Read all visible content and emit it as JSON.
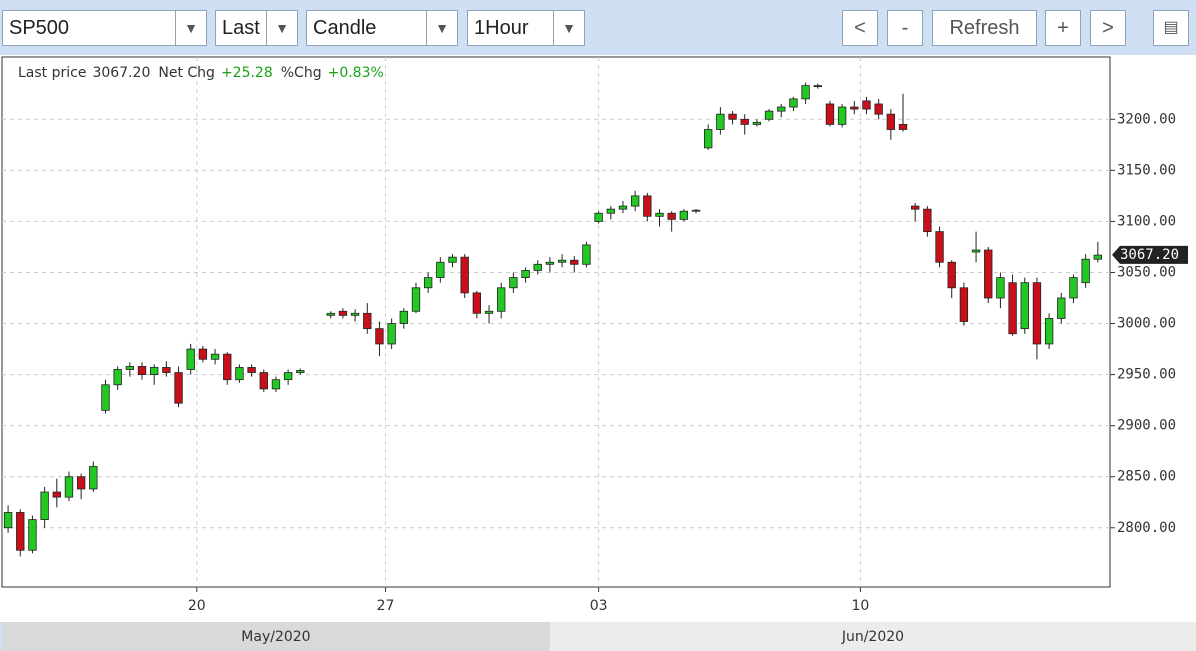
{
  "toolbar": {
    "symbol": "SP500",
    "field": "Last",
    "style": "Candle",
    "interval": "1Hour",
    "buttons": [
      "<",
      "-",
      "Refresh",
      "+",
      ">"
    ]
  },
  "chart_data": {
    "type": "candlestick",
    "info": [
      {
        "label": "Last price",
        "value": "3067.20"
      },
      {
        "label": "Net Chg",
        "value": "+25.28"
      },
      {
        "label": "%Chg",
        "value": "+0.83%"
      }
    ],
    "up_color": "#22c922",
    "down_color": "#c8101a",
    "grid": true,
    "ylim": [
      2742,
      3261
    ],
    "yticks": [
      {
        "value": 2800,
        "label": "2800.00"
      },
      {
        "value": 2850,
        "label": "2850.00"
      },
      {
        "value": 2900,
        "label": "2900.00"
      },
      {
        "value": 2950,
        "label": "2950.00"
      },
      {
        "value": 3000,
        "label": "3000.00"
      },
      {
        "value": 3050,
        "label": "3050.00"
      },
      {
        "value": 3100,
        "label": "3100.00"
      },
      {
        "value": 3150,
        "label": "3150.00"
      },
      {
        "value": 3200,
        "label": "3200.00"
      }
    ],
    "xlim": [
      -1,
      181
    ],
    "xticks": [
      {
        "value": 31,
        "label": "20"
      },
      {
        "value": 62,
        "label": "27"
      },
      {
        "value": 97,
        "label": "03"
      },
      {
        "value": 140,
        "label": "10"
      }
    ],
    "months": [
      {
        "label": "May/2020",
        "from": -1,
        "to": 89
      },
      {
        "label": "Jun/2020",
        "from": 89,
        "to": 181
      }
    ],
    "last_price": {
      "value": 3067.2,
      "label": "3067.20"
    },
    "x": [
      0,
      2,
      4,
      6,
      8,
      10,
      12,
      14,
      16,
      18,
      20,
      22,
      24,
      26,
      28,
      30,
      32,
      34,
      36,
      38,
      40,
      42,
      44,
      46,
      48,
      53,
      55,
      57,
      59,
      61,
      63,
      65,
      67,
      69,
      71,
      73,
      75,
      77,
      79,
      81,
      83,
      85,
      87,
      89,
      91,
      93,
      95,
      97,
      99,
      101,
      103,
      105,
      107,
      109,
      111,
      113,
      115,
      117,
      119,
      121,
      123,
      125,
      127,
      129,
      131,
      133,
      135,
      137,
      139,
      141,
      143,
      145,
      147,
      149,
      151,
      153,
      155,
      157,
      159,
      161,
      163,
      165,
      167,
      169,
      171,
      173,
      175,
      177,
      179
    ],
    "open": [
      2800,
      2815,
      2778,
      2808,
      2835,
      2830,
      2850,
      2838,
      2915,
      2940,
      2955,
      2958,
      2950,
      2957,
      2952,
      2955,
      2975,
      2965,
      2970,
      2945,
      2957,
      2952,
      2936,
      2945,
      2952,
      3008,
      3012,
      3008,
      3010,
      2995,
      2980,
      3000,
      3012,
      3035,
      3045,
      3060,
      3065,
      3030,
      3010,
      3012,
      3035,
      3045,
      3052,
      3058,
      3060,
      3062,
      3058,
      3100,
      3108,
      3112,
      3115,
      3125,
      3105,
      3108,
      3102,
      3110,
      3172,
      3190,
      3205,
      3200,
      3195,
      3200,
      3208,
      3212,
      3220,
      3233,
      3215,
      3195,
      3212,
      3218,
      3215,
      3205,
      3195,
      3115,
      3112,
      3090,
      3060,
      3035,
      3070,
      3072,
      3025,
      3040,
      2995,
      3040,
      2980,
      3005,
      3025,
      3040,
      3063
    ],
    "high": [
      2822,
      2818,
      2812,
      2840,
      2848,
      2855,
      2853,
      2865,
      2945,
      2958,
      2962,
      2962,
      2960,
      2963,
      2958,
      2980,
      2978,
      2975,
      2972,
      2960,
      2960,
      2955,
      2948,
      2955,
      2956,
      3012,
      3015,
      3014,
      3020,
      3002,
      3005,
      3015,
      3040,
      3050,
      3065,
      3068,
      3068,
      3032,
      3018,
      3040,
      3050,
      3055,
      3062,
      3065,
      3068,
      3066,
      3080,
      3110,
      3115,
      3120,
      3130,
      3128,
      3112,
      3110,
      3112,
      3112,
      3195,
      3212,
      3208,
      3205,
      3200,
      3210,
      3215,
      3222,
      3236,
      3235,
      3218,
      3215,
      3218,
      3222,
      3220,
      3210,
      3225,
      3118,
      3115,
      3095,
      3062,
      3040,
      3090,
      3075,
      3050,
      3048,
      3045,
      3045,
      3010,
      3030,
      3048,
      3068,
      3080
    ],
    "low": [
      2795,
      2772,
      2775,
      2800,
      2820,
      2826,
      2828,
      2835,
      2912,
      2935,
      2948,
      2945,
      2940,
      2948,
      2918,
      2950,
      2962,
      2960,
      2940,
      2942,
      2948,
      2933,
      2933,
      2940,
      2950,
      3005,
      3005,
      3002,
      2990,
      2968,
      2975,
      2995,
      3010,
      3030,
      3040,
      3055,
      3025,
      3005,
      3000,
      3005,
      3030,
      3040,
      3048,
      3050,
      3055,
      3050,
      3055,
      3098,
      3102,
      3108,
      3110,
      3100,
      3095,
      3090,
      3100,
      3108,
      3170,
      3185,
      3195,
      3185,
      3193,
      3198,
      3202,
      3208,
      3215,
      3230,
      3193,
      3192,
      3205,
      3205,
      3200,
      3180,
      3188,
      3100,
      3085,
      3055,
      3025,
      2998,
      3060,
      3020,
      3015,
      2988,
      2990,
      2965,
      2975,
      3000,
      3020,
      3035,
      3060
    ],
    "close": [
      2815,
      2778,
      2808,
      2835,
      2830,
      2850,
      2838,
      2860,
      2940,
      2955,
      2958,
      2950,
      2957,
      2952,
      2922,
      2975,
      2965,
      2970,
      2945,
      2957,
      2952,
      2936,
      2945,
      2952,
      2954,
      3010,
      3008,
      3010,
      2995,
      2980,
      3000,
      3012,
      3035,
      3045,
      3060,
      3065,
      3030,
      3010,
      3012,
      3035,
      3045,
      3052,
      3058,
      3060,
      3062,
      3058,
      3077,
      3108,
      3112,
      3115,
      3125,
      3105,
      3108,
      3102,
      3110,
      3111,
      3190,
      3205,
      3200,
      3195,
      3197,
      3208,
      3212,
      3220,
      3233,
      3232,
      3195,
      3212,
      3210,
      3210,
      3205,
      3190,
      3190,
      3112,
      3090,
      3060,
      3035,
      3002,
      3072,
      3025,
      3045,
      2990,
      3040,
      2980,
      3005,
      3025,
      3045,
      3063,
      3067
    ]
  }
}
